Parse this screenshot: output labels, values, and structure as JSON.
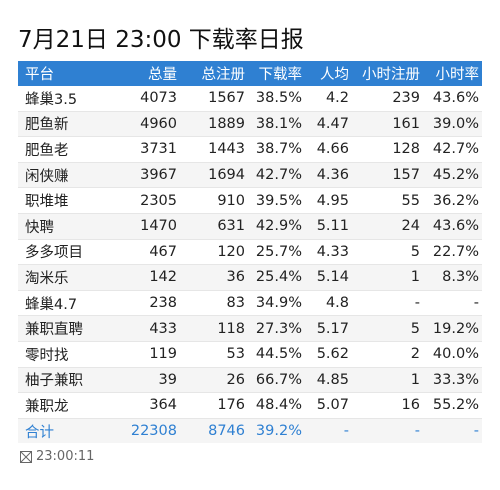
{
  "header": {
    "title": "7月21日 23:00 下载率日报"
  },
  "table": {
    "columns": [
      "平台",
      "总量",
      "总注册",
      "下载率",
      "人均",
      "小时注册",
      "小时率"
    ],
    "rows": [
      [
        "蜂巢3.5",
        "4073",
        "1567",
        "38.5%",
        "4.2",
        "239",
        "43.6%"
      ],
      [
        "肥鱼新",
        "4960",
        "1889",
        "38.1%",
        "4.47",
        "161",
        "39.0%"
      ],
      [
        "肥鱼老",
        "3731",
        "1443",
        "38.7%",
        "4.66",
        "128",
        "42.7%"
      ],
      [
        "闲侠赚",
        "3967",
        "1694",
        "42.7%",
        "4.36",
        "157",
        "45.2%"
      ],
      [
        "职堆堆",
        "2305",
        "910",
        "39.5%",
        "4.95",
        "55",
        "36.2%"
      ],
      [
        "快聘",
        "1470",
        "631",
        "42.9%",
        "5.11",
        "24",
        "43.6%"
      ],
      [
        "多多项目",
        "467",
        "120",
        "25.7%",
        "4.33",
        "5",
        "22.7%"
      ],
      [
        "淘米乐",
        "142",
        "36",
        "25.4%",
        "5.14",
        "1",
        "8.3%"
      ],
      [
        "蜂巢4.7",
        "238",
        "83",
        "34.9%",
        "4.8",
        "-",
        "-"
      ],
      [
        "兼职直聘",
        "433",
        "118",
        "27.3%",
        "5.17",
        "5",
        "19.2%"
      ],
      [
        "零时找",
        "119",
        "53",
        "44.5%",
        "5.62",
        "2",
        "40.0%"
      ],
      [
        "柚子兼职",
        "39",
        "26",
        "66.7%",
        "4.85",
        "1",
        "33.3%"
      ],
      [
        "兼职龙",
        "364",
        "176",
        "48.4%",
        "5.07",
        "16",
        "55.2%"
      ]
    ],
    "total": [
      "合计",
      "22308",
      "8746",
      "39.2%",
      "-",
      "-",
      "-"
    ]
  },
  "footer": {
    "time": "23:00:11"
  }
}
